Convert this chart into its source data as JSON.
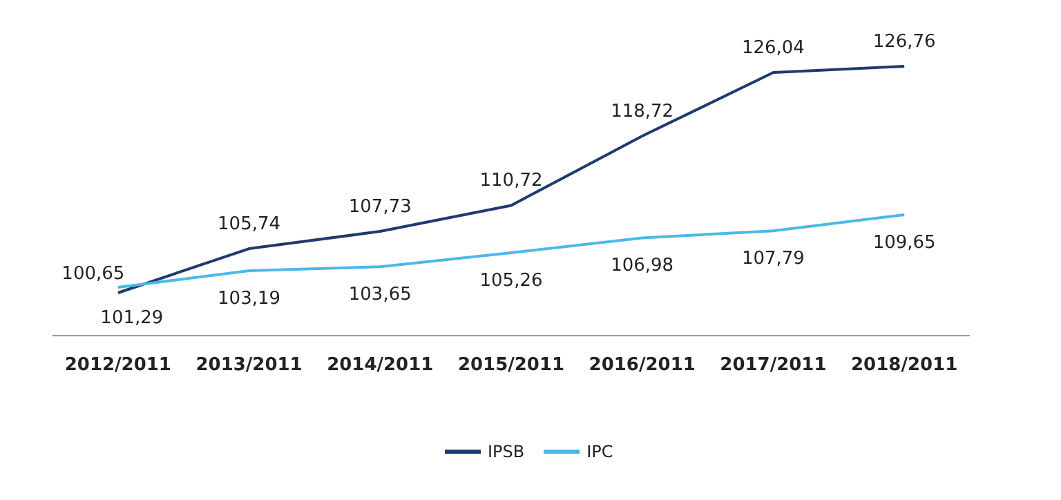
{
  "chart_data": {
    "type": "line",
    "categories": [
      "2012/2011",
      "2013/2011",
      "2014/2011",
      "2015/2011",
      "2016/2011",
      "2017/2011",
      "2018/2011"
    ],
    "series": [
      {
        "name": "IPSB",
        "color": "#1f3a6e",
        "values": [
          100.65,
          105.74,
          107.73,
          110.72,
          118.72,
          126.04,
          126.76
        ],
        "value_labels": [
          "100,65",
          "105,74",
          "107,73",
          "110,72",
          "118,72",
          "126,04",
          "126,76"
        ]
      },
      {
        "name": "IPC",
        "color": "#4db8e8",
        "values": [
          101.29,
          103.19,
          103.65,
          105.26,
          106.98,
          107.79,
          109.65
        ],
        "value_labels": [
          "101,29",
          "103,19",
          "103,65",
          "105,26",
          "106,98",
          "107,79",
          "109,65"
        ]
      }
    ],
    "tick_labels": "x",
    "grid": false,
    "legend": "bottom",
    "marker": "none",
    "line_style": "solid"
  }
}
